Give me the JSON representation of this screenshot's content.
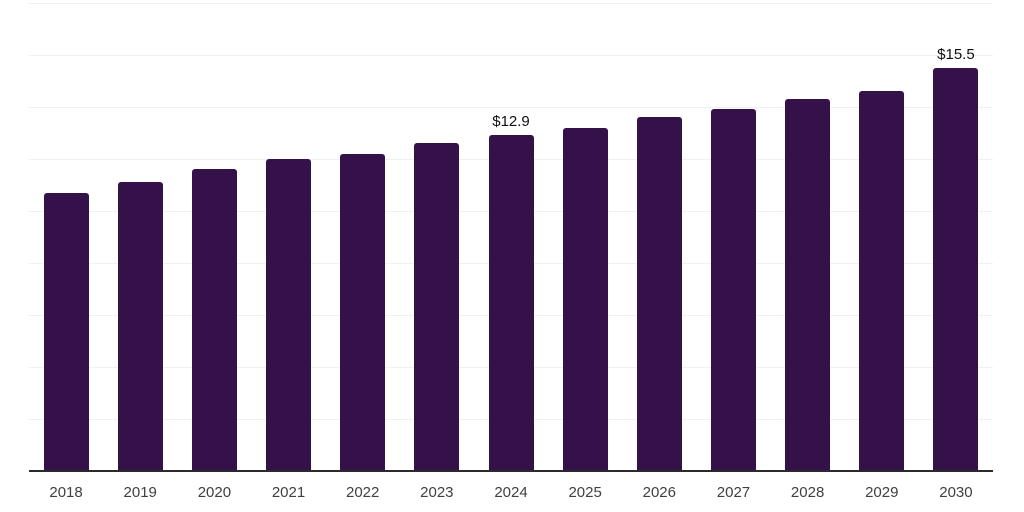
{
  "chart_data": {
    "type": "bar",
    "title": "",
    "xlabel": "",
    "ylabel": "",
    "categories": [
      "2018",
      "2019",
      "2020",
      "2021",
      "2022",
      "2023",
      "2024",
      "2025",
      "2026",
      "2027",
      "2028",
      "2029",
      "2030"
    ],
    "values": [
      10.7,
      11.1,
      11.6,
      12.0,
      12.2,
      12.6,
      12.9,
      13.2,
      13.6,
      13.9,
      14.3,
      14.6,
      15.5
    ],
    "data_labels": [
      {
        "category": "2024",
        "text": "$12.9"
      },
      {
        "category": "2030",
        "text": "$15.5"
      }
    ],
    "ylim": [
      0,
      18
    ],
    "gridline_step": 2,
    "grid": "horizontal-only",
    "legend": "none",
    "y_tick_labels_shown": false,
    "colors": {
      "bar": "#35114A",
      "gridline": "#f0f0f0",
      "axis_line": "#2b2b2b",
      "x_tick_label": "#404040",
      "value_label": "#111111",
      "background": "#ffffff"
    }
  }
}
